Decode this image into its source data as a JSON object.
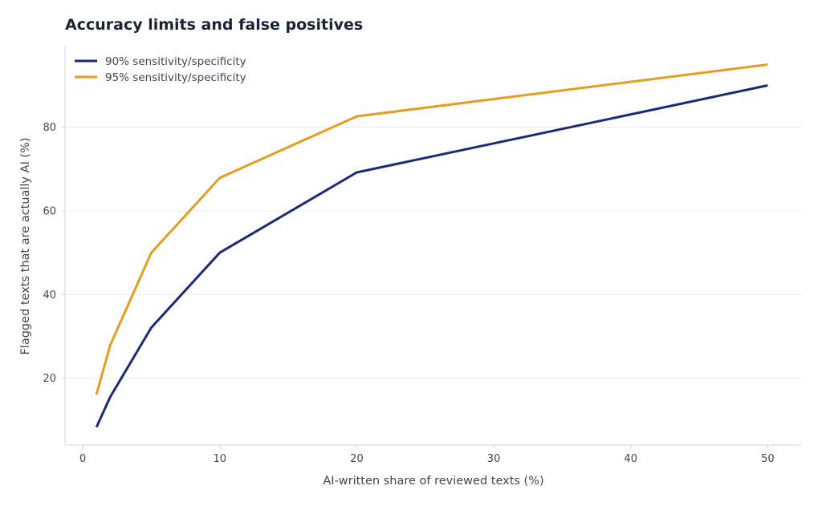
{
  "chart_data": {
    "type": "line",
    "title": "Accuracy limits and false positives",
    "xlabel": "AI-written share of reviewed texts (%)",
    "ylabel": "Flagged texts that are actually AI (%)",
    "xlim": [
      -1.3,
      52.5
    ],
    "ylim": [
      4,
      99.5
    ],
    "xticks": [
      0,
      10,
      20,
      30,
      40,
      50
    ],
    "yticks": [
      20,
      40,
      60,
      80
    ],
    "grid": "horizontal",
    "legend_position": "top-left",
    "x": [
      1,
      2,
      5,
      10,
      20,
      50
    ],
    "series": [
      {
        "name": "90% sensitivity/specificity",
        "color": "#1b2a78",
        "values": [
          8.3,
          15.5,
          32.1,
          50.0,
          69.2,
          90.0
        ]
      },
      {
        "name": "95% sensitivity/specificity",
        "color": "#e39e20",
        "values": [
          16.1,
          27.9,
          50.0,
          67.9,
          82.6,
          95.0
        ]
      }
    ]
  }
}
